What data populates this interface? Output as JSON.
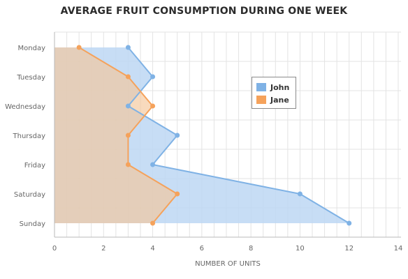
{
  "chart_data": {
    "type": "area",
    "orientation": "horizontal",
    "title": "AVERAGE FRUIT CONSUMPTION DURING ONE WEEK",
    "xlabel": "NUMBER OF UNITS",
    "ylabel": "",
    "categories": [
      "Monday",
      "Tuesday",
      "Wednesday",
      "Thursday",
      "Friday",
      "Saturday",
      "Sunday"
    ],
    "xlim": [
      0,
      14
    ],
    "xticks": [
      0,
      2,
      4,
      6,
      8,
      10,
      12,
      14
    ],
    "grid": true,
    "legend_position": "right-center",
    "series": [
      {
        "name": "John",
        "color": "#7fb2e5",
        "fill": "#bdd7f3",
        "values": [
          3,
          4,
          3,
          5,
          4,
          10,
          12
        ]
      },
      {
        "name": "Jane",
        "color": "#f5a25b",
        "fill": "#f5c69a",
        "values": [
          1,
          3,
          4,
          3,
          3,
          5,
          4
        ]
      }
    ]
  }
}
